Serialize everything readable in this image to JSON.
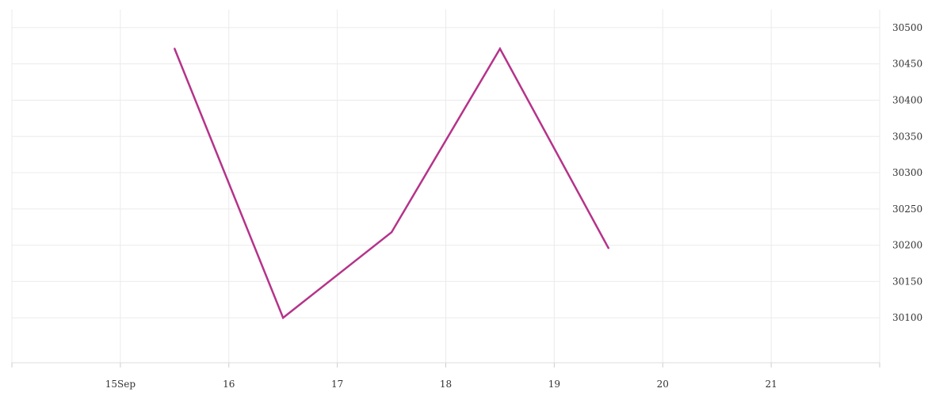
{
  "chart_data": {
    "type": "line",
    "x": [
      "2020-09-15T12:00",
      "2020-09-16T12:00",
      "2020-09-17T12:00",
      "2020-09-18T12:00",
      "2020-09-19T12:00"
    ],
    "series": [
      {
        "values": [
          30471,
          30100,
          30218,
          30471,
          30196
        ],
        "color": "#b5338a"
      }
    ],
    "x_ticks": [
      {
        "value": "2020-09-15T00:00",
        "label": "15Sep"
      },
      {
        "value": "2020-09-16T00:00",
        "label": "16"
      },
      {
        "value": "2020-09-17T00:00",
        "label": "17"
      },
      {
        "value": "2020-09-18T00:00",
        "label": "18"
      },
      {
        "value": "2020-09-19T00:00",
        "label": "19"
      },
      {
        "value": "2020-09-20T00:00",
        "label": "20"
      },
      {
        "value": "2020-09-21T00:00",
        "label": "21"
      }
    ],
    "xlim": [
      "2020-09-14T00:00",
      "2020-09-22T00:00"
    ],
    "y_ticks": [
      30100,
      30150,
      30200,
      30250,
      30300,
      30350,
      30400,
      30450,
      30500
    ],
    "y_tick_labels": [
      "30100",
      "30150",
      "30200",
      "30250",
      "30300",
      "30350",
      "30400",
      "30450",
      "30500"
    ],
    "ylim": [
      30038,
      30525
    ],
    "y_axis_position": "right",
    "grid": true,
    "title": "",
    "xlabel": "",
    "ylabel": "",
    "gridline_color": "#ebebeb"
  }
}
